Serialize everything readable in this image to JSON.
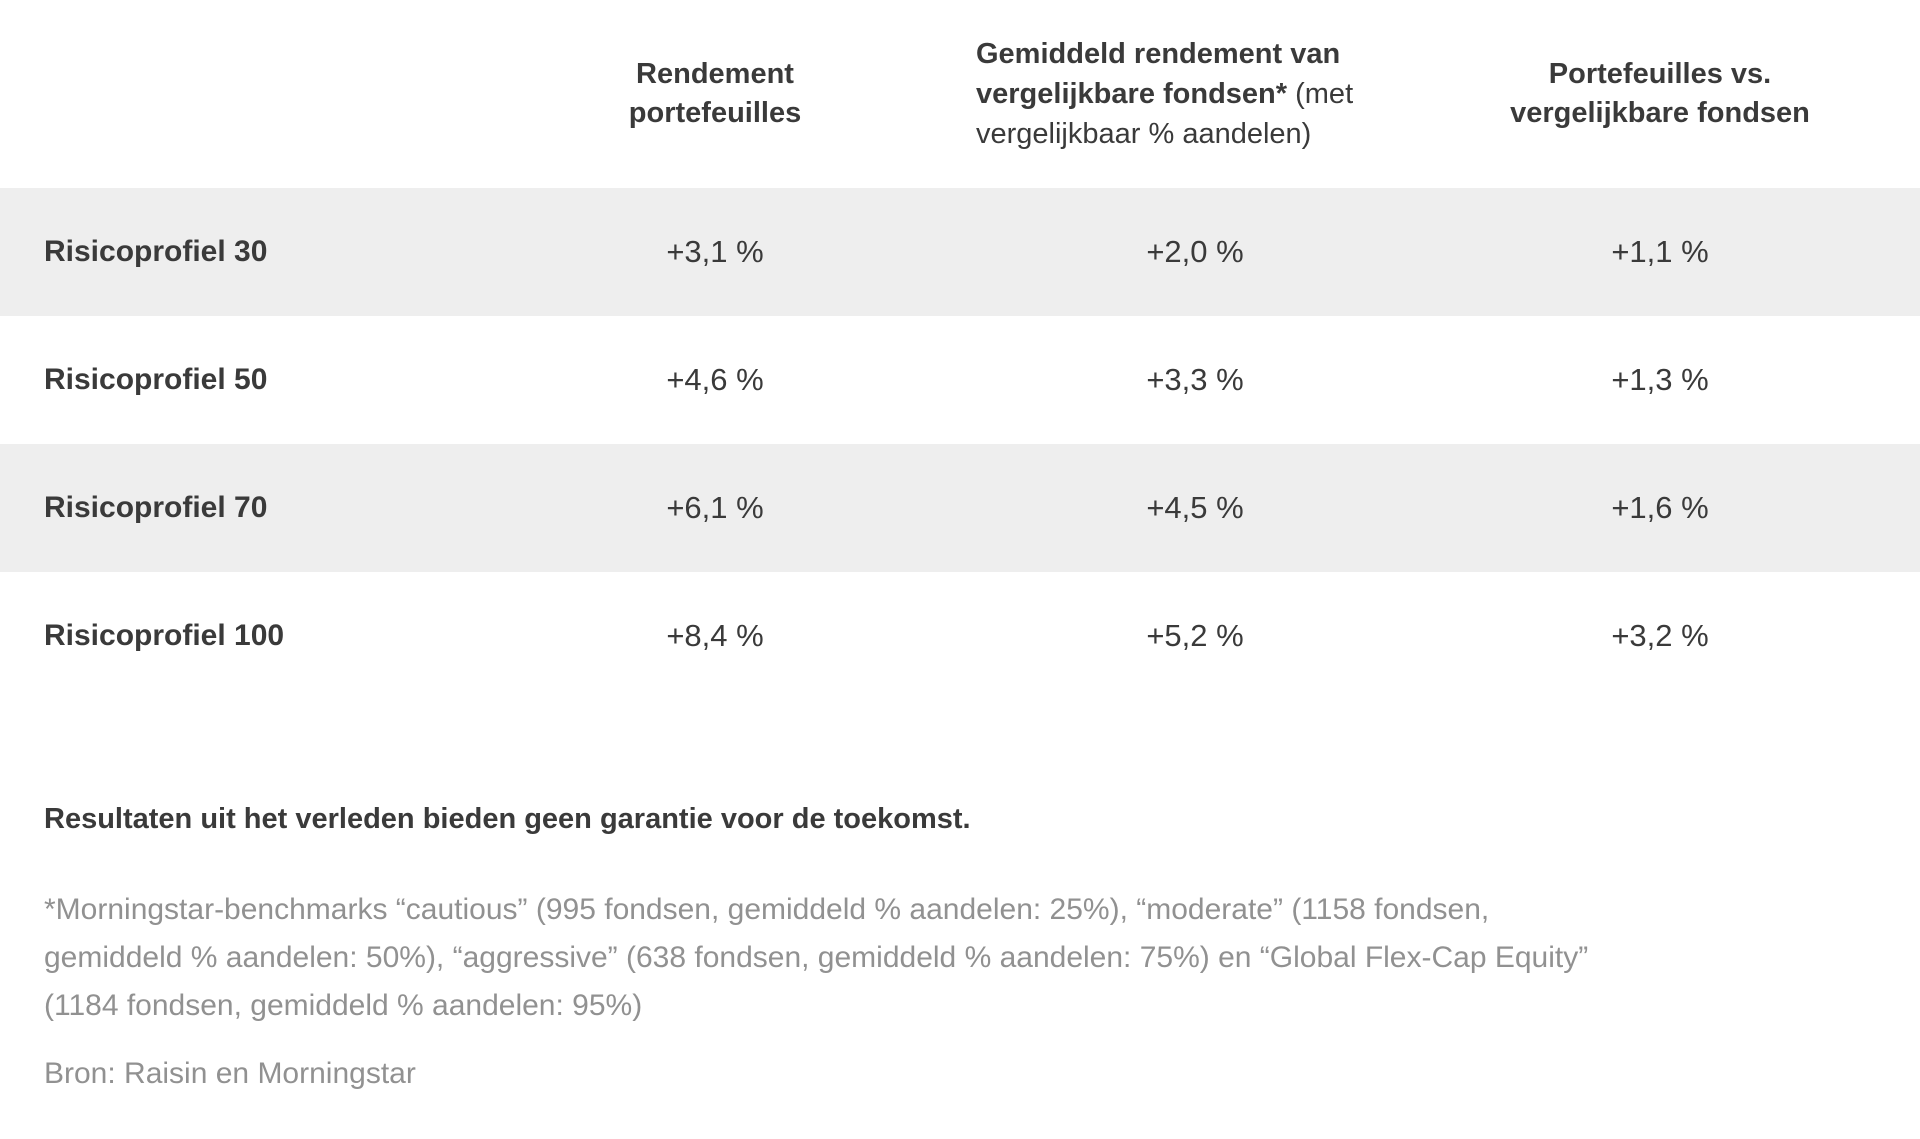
{
  "table": {
    "headers": {
      "col1": "",
      "col2_lines": [
        "Rendement",
        "portefeuilles"
      ],
      "col3_bold": "Gemiddeld rendement van vergelijkbare fondsen*",
      "col3_regular": " (met vergelijkbaar % aandelen)",
      "col4_lines": [
        "Portefeuilles vs.",
        "vergelijkbare fondsen"
      ]
    },
    "rows": [
      {
        "label": "Risicoprofiel 30",
        "values": [
          "+3,1 %",
          "+2,0 %",
          "+1,1 %"
        ]
      },
      {
        "label": "Risicoprofiel 50",
        "values": [
          "+4,6 %",
          "+3,3 %",
          "+1,3 %"
        ]
      },
      {
        "label": "Risicoprofiel 70",
        "values": [
          "+6,1 %",
          "+4,5 %",
          "+1,6 %"
        ]
      },
      {
        "label": "Risicoprofiel 100",
        "values": [
          "+8,4 %",
          "+5,2 %",
          "+3,2 %"
        ]
      }
    ]
  },
  "footer": {
    "disclaimer": "Resultaten uit het verleden bieden geen garantie voor de toekomst.",
    "footnote_lines": [
      "*Morningstar-benchmarks “cautious” (995 fondsen, gemiddeld % aandelen: 25%), “moderate” (1158 fondsen,",
      "gemiddeld % aandelen: 50%), “aggressive” (638 fondsen, gemiddeld % aandelen: 75%) en “Global Flex-Cap Equity”",
      "(1184 fondsen, gemiddeld % aandelen: 95%)"
    ],
    "source": "Bron: Raisin en Morningstar"
  },
  "colors": {
    "text_dark": "#3a3a3a",
    "text_grey": "#919191",
    "row_stripe": "#eeeeee",
    "background": "#ffffff"
  },
  "chart_data": {
    "type": "table",
    "title": "Rendement portefeuilles vs. vergelijkbare fondsen",
    "columns": [
      "",
      "Rendement portefeuilles",
      "Gemiddeld rendement van vergelijkbare fondsen* (met vergelijkbaar % aandelen)",
      "Portefeuilles vs. vergelijkbare fondsen"
    ],
    "rows": [
      [
        "Risicoprofiel 30",
        "+3,1 %",
        "+2,0 %",
        "+1,1 %"
      ],
      [
        "Risicoprofiel 50",
        "+4,6 %",
        "+3,3 %",
        "+1,3 %"
      ],
      [
        "Risicoprofiel 70",
        "+6,1 %",
        "+4,5 %",
        "+1,6 %"
      ],
      [
        "Risicoprofiel 100",
        "+8,4 %",
        "+5,2 %",
        "+3,2 %"
      ]
    ],
    "values_numeric_pct": {
      "categories": [
        "Risicoprofiel 30",
        "Risicoprofiel 50",
        "Risicoprofiel 70",
        "Risicoprofiel 100"
      ],
      "series": [
        {
          "name": "Rendement portefeuilles",
          "values": [
            3.1,
            4.6,
            6.1,
            8.4
          ]
        },
        {
          "name": "Gemiddeld rendement van vergelijkbare fondsen",
          "values": [
            2.0,
            3.3,
            4.5,
            5.2
          ]
        },
        {
          "name": "Portefeuilles vs. vergelijkbare fondsen",
          "values": [
            1.1,
            1.3,
            1.6,
            3.2
          ]
        }
      ]
    },
    "notes": {
      "disclaimer": "Resultaten uit het verleden bieden geen garantie voor de toekomst.",
      "benchmark_footnote": "*Morningstar-benchmarks “cautious” (995 fondsen, gemiddeld % aandelen: 25%), “moderate” (1158 fondsen, gemiddeld % aandelen: 50%), “aggressive” (638 fondsen, gemiddeld % aandelen: 75%) en “Global Flex-Cap Equity” (1184 fondsen, gemiddeld % aandelen: 95%)",
      "source": "Bron: Raisin en Morningstar"
    },
    "layout": {
      "striped_rows": [
        0,
        2
      ],
      "grid": false,
      "legend": false
    }
  }
}
